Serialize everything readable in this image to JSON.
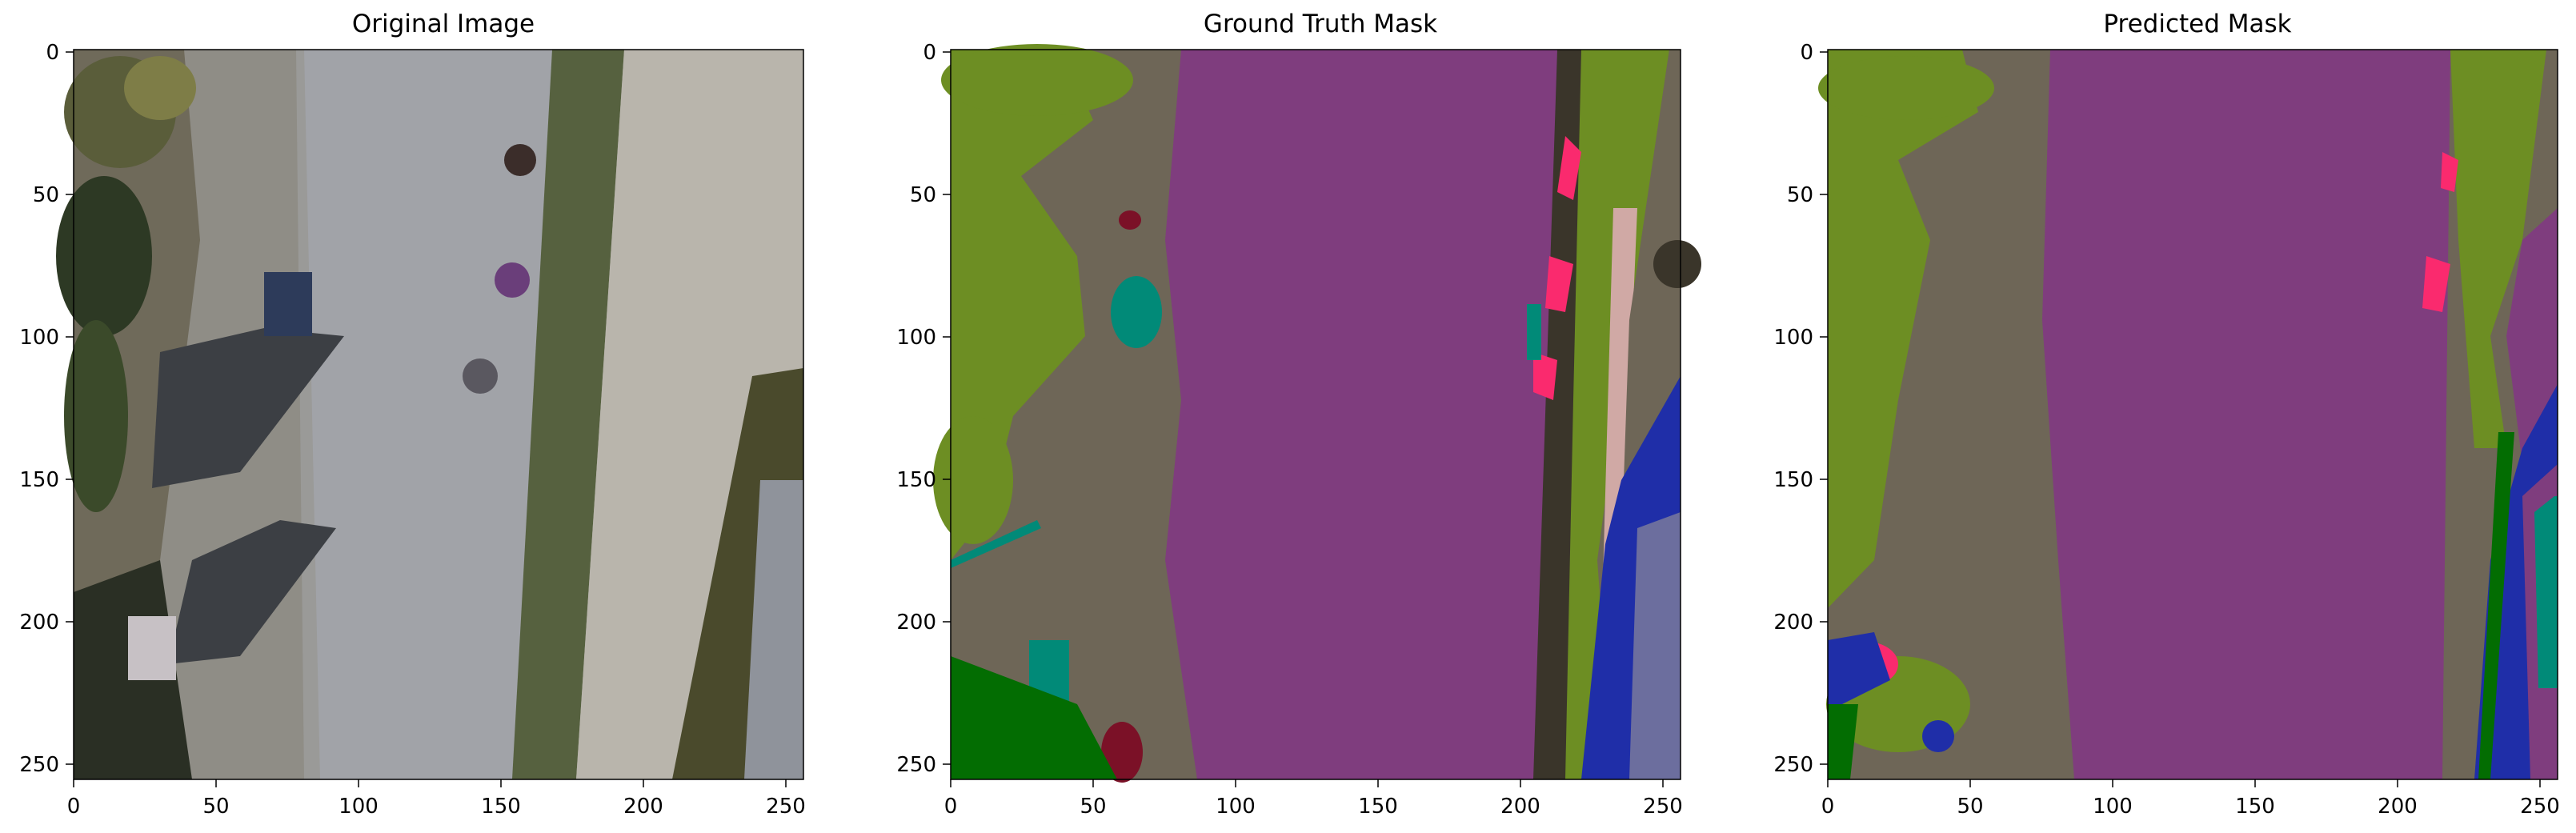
{
  "panels": [
    {
      "title": "Original Image",
      "x_ticks": [
        "0",
        "50",
        "100",
        "150",
        "200",
        "250"
      ],
      "y_ticks": [
        "0",
        "50",
        "100",
        "150",
        "200",
        "250"
      ]
    },
    {
      "title": "Ground Truth Mask",
      "x_ticks": [
        "0",
        "50",
        "100",
        "150",
        "200",
        "250"
      ],
      "y_ticks": [
        "0",
        "50",
        "100",
        "150",
        "200",
        "250"
      ]
    },
    {
      "title": "Predicted Mask",
      "x_ticks": [
        "0",
        "50",
        "100",
        "150",
        "200",
        "250"
      ],
      "y_ticks": [
        "0",
        "50",
        "100",
        "150",
        "200",
        "250"
      ]
    }
  ],
  "palette": {
    "path": "#7f3d7e",
    "ground": "#6e6657",
    "vegetation": "#6d8e23",
    "person": "#fa2a6e",
    "water": "#1f2ea8",
    "pool": "#6c6e9e",
    "tree": "#036d02",
    "obstacle": "#018a78",
    "object": "#7b1127",
    "fence_pole": "#d0a9a5",
    "dark": "#3a352a"
  }
}
